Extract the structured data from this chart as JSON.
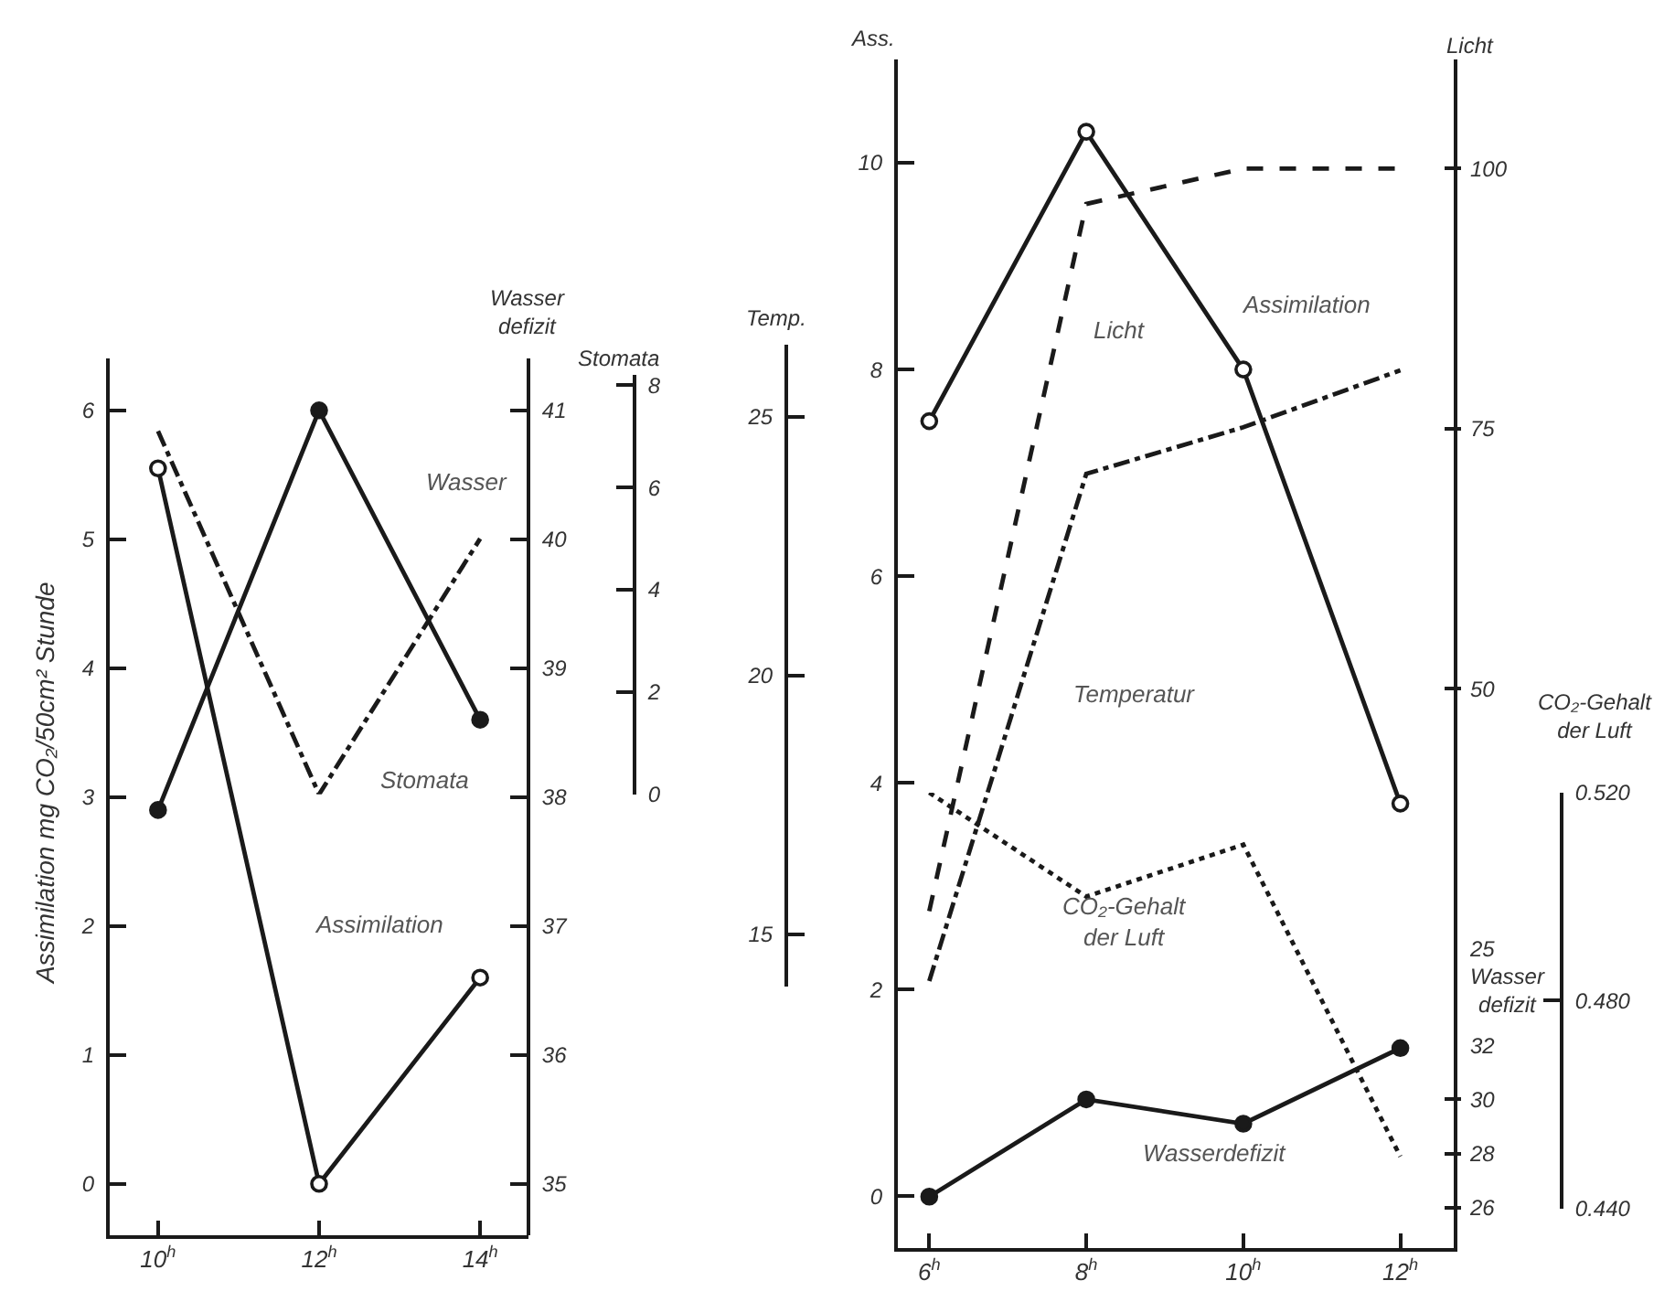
{
  "chart_data": [
    {
      "type": "line",
      "categories": [
        "10$^{h}$",
        "12$^{h}$",
        "14$^{h}$"
      ],
      "ylabel": "Assimilation mg CO₂/50cm² Stunde",
      "y2label": "Wasser\ndefizit",
      "y3label": "Stomata",
      "ylim": [
        -0.4,
        6.4
      ],
      "yticks": [
        0,
        1,
        2,
        3,
        4,
        5,
        6
      ],
      "y2lim": [
        34.6,
        41.4
      ],
      "y2ticks": [
        35,
        36,
        37,
        38,
        39,
        40,
        41
      ],
      "y3lim": [
        0,
        8.2
      ],
      "y3ticks": [
        0,
        2,
        4,
        6,
        8
      ],
      "series": [
        {
          "name": "Assimilation",
          "color": "#1a1a1a",
          "values": [
            5.55,
            0,
            1.6
          ],
          "marker": "circle-open",
          "line_style": "solid"
        },
        {
          "name": "Wasser",
          "color": "#1a1a1a",
          "values": [
            37.9,
            41.0,
            38.6
          ],
          "axis": "y2",
          "marker": "circle",
          "line_style": "solid"
        },
        {
          "name": "Stomata",
          "color": "#1a1a1a",
          "values": [
            7.1,
            0,
            5.0
          ],
          "axis": "y3",
          "marker": "none",
          "line_style": "dashdot"
        }
      ]
    },
    {
      "type": "line",
      "categories": [
        "6$^{h}$",
        "8$^{h}$",
        "10$^{h}$",
        "12$^{h}$"
      ],
      "ylabel": "Ass.",
      "y2label": "Licht",
      "y3label": "Temp.",
      "ylim": [
        -0.5,
        11
      ],
      "yticks": [
        0,
        2,
        4,
        6,
        8,
        10
      ],
      "y2lim": [
        25,
        110.5
      ],
      "y2ticks": [
        25,
        50,
        75,
        100
      ],
      "y3lim": [
        14.0,
        26.4
      ],
      "y3ticks": [
        15,
        20,
        25
      ],
      "series": [
        {
          "name": "Assimilation",
          "color": "#1a1a1a",
          "values": [
            7.5,
            10.3,
            8.0,
            3.8
          ],
          "marker": "circle-open",
          "line_style": "solid"
        },
        {
          "name": "Licht",
          "color": "#1a1a1a",
          "values": [
            28.6,
            96.6,
            100,
            100
          ],
          "axis": "y2",
          "marker": "none",
          "line_style": "dashed"
        },
        {
          "name": "Temperatur",
          "color": "#1a1a1a",
          "values": [
            14.1,
            23.9,
            24.8,
            25.9
          ],
          "axis": "y3",
          "marker": "none",
          "line_style": "dashdot"
        }
      ]
    },
    {
      "type": "line",
      "categories": [
        "6$^{h}$",
        "8$^{h}$",
        "10$^{h}$",
        "12$^{h}$"
      ],
      "tick_labels": "y",
      "ylabel": "CO₂-Gehalt\nder Luft",
      "y2label": "Wasser\ndefizit",
      "ylim": [
        0.44,
        0.52
      ],
      "yticks": [
        {
          "value": 0.44,
          "label": "0.440"
        },
        {
          "value": 0.48,
          "label": "0.480"
        },
        {
          "value": 0.52,
          "label": "0.520"
        }
      ],
      "y2lim": [
        24.5,
        32
      ],
      "y2ticks": [
        26,
        28,
        30,
        32
      ],
      "series": [
        {
          "name": "CO₂-Gehalt\nder Luft",
          "color": "#1a1a1a",
          "values": [
            0.52,
            0.5,
            0.51,
            0.45
          ],
          "marker": "none",
          "line_style": "dotted"
        },
        {
          "name": "Wasserdefizit",
          "color": "#1a1a1a",
          "values": [
            26.4,
            30.0,
            29.1,
            31.9
          ],
          "axis": "y2",
          "marker": "circle",
          "line_style": "solid"
        }
      ]
    }
  ]
}
